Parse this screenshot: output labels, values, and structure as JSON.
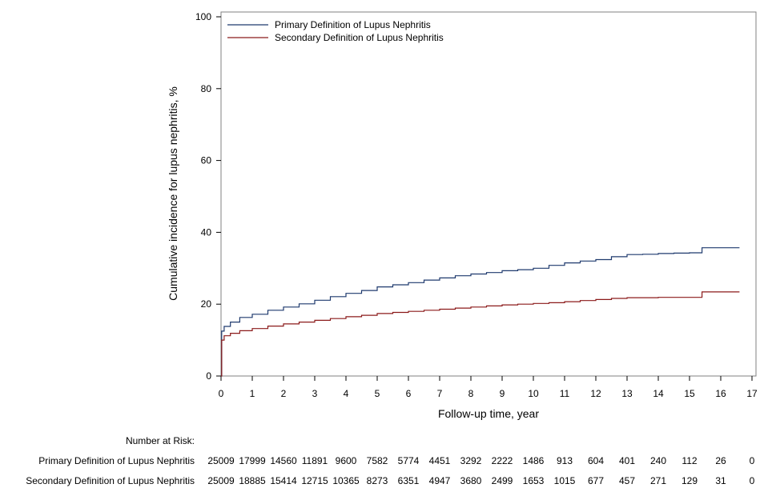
{
  "chart_data": {
    "type": "line",
    "xlabel": "Follow-up time, year",
    "ylabel": "Cumulative incidence for lupus nephritis, %",
    "xlim": [
      0,
      17
    ],
    "ylim": [
      0,
      100
    ],
    "x_ticks": [
      "0",
      "1",
      "2",
      "3",
      "4",
      "5",
      "6",
      "7",
      "8",
      "9",
      "10",
      "11",
      "12",
      "13",
      "14",
      "15",
      "16",
      "17"
    ],
    "y_ticks": [
      "0",
      "20",
      "40",
      "60",
      "80",
      "100"
    ],
    "grid": false,
    "legend_position": "top-left",
    "series": [
      {
        "name": "Primary Definition of Lupus Nephritis",
        "color": "#1f3a6e",
        "points": [
          [
            0,
            0
          ],
          [
            0.02,
            12.5
          ],
          [
            0.1,
            13.8
          ],
          [
            0.3,
            15
          ],
          [
            0.6,
            16.3
          ],
          [
            1,
            17.2
          ],
          [
            1.5,
            18.3
          ],
          [
            2,
            19.2
          ],
          [
            2.5,
            20.1
          ],
          [
            3,
            21.1
          ],
          [
            3.5,
            22.1
          ],
          [
            4,
            23
          ],
          [
            4.5,
            23.8
          ],
          [
            5,
            24.8
          ],
          [
            5.5,
            25.4
          ],
          [
            6,
            26
          ],
          [
            6.5,
            26.7
          ],
          [
            7,
            27.3
          ],
          [
            7.5,
            27.9
          ],
          [
            8,
            28.4
          ],
          [
            8.5,
            28.8
          ],
          [
            9,
            29.3
          ],
          [
            9.5,
            29.6
          ],
          [
            10,
            30
          ],
          [
            10.5,
            30.8
          ],
          [
            11,
            31.5
          ],
          [
            11.5,
            32
          ],
          [
            12,
            32.4
          ],
          [
            12.5,
            33.2
          ],
          [
            13,
            33.8
          ],
          [
            13.5,
            33.9
          ],
          [
            14,
            34.1
          ],
          [
            14.5,
            34.2
          ],
          [
            15,
            34.3
          ],
          [
            15.3,
            34.3
          ],
          [
            15.4,
            35.7
          ],
          [
            16.6,
            35.7
          ]
        ]
      },
      {
        "name": "Secondary Definition of Lupus Nephritis",
        "color": "#8b1a1a",
        "points": [
          [
            0,
            0
          ],
          [
            0.02,
            10
          ],
          [
            0.1,
            11.2
          ],
          [
            0.3,
            11.9
          ],
          [
            0.6,
            12.6
          ],
          [
            1,
            13.2
          ],
          [
            1.5,
            13.9
          ],
          [
            2,
            14.5
          ],
          [
            2.5,
            15
          ],
          [
            3,
            15.5
          ],
          [
            3.5,
            16
          ],
          [
            4,
            16.5
          ],
          [
            4.5,
            16.9
          ],
          [
            5,
            17.4
          ],
          [
            5.5,
            17.7
          ],
          [
            6,
            18
          ],
          [
            6.5,
            18.3
          ],
          [
            7,
            18.6
          ],
          [
            7.5,
            18.9
          ],
          [
            8,
            19.2
          ],
          [
            8.5,
            19.5
          ],
          [
            9,
            19.8
          ],
          [
            9.5,
            20
          ],
          [
            10,
            20.2
          ],
          [
            10.5,
            20.4
          ],
          [
            11,
            20.7
          ],
          [
            11.5,
            21
          ],
          [
            12,
            21.3
          ],
          [
            12.5,
            21.6
          ],
          [
            13,
            21.8
          ],
          [
            13.5,
            21.8
          ],
          [
            14,
            21.9
          ],
          [
            14.5,
            21.9
          ],
          [
            15,
            21.9
          ],
          [
            15.3,
            21.9
          ],
          [
            15.4,
            23.4
          ],
          [
            16.6,
            23.4
          ]
        ]
      }
    ],
    "risk_table": {
      "title": "Number at Risk:",
      "rows": [
        {
          "label": "Primary Definition of Lupus Nephritis",
          "values": [
            "25009",
            "17999",
            "14560",
            "11891",
            "9600",
            "7582",
            "5774",
            "4451",
            "3292",
            "2222",
            "1486",
            "913",
            "604",
            "401",
            "240",
            "112",
            "26",
            "0"
          ]
        },
        {
          "label": "Secondary Definition of Lupus Nephritis",
          "values": [
            "25009",
            "18885",
            "15414",
            "12715",
            "10365",
            "8273",
            "6351",
            "4947",
            "3680",
            "2499",
            "1653",
            "1015",
            "677",
            "457",
            "271",
            "129",
            "31",
            "0"
          ]
        }
      ]
    }
  }
}
